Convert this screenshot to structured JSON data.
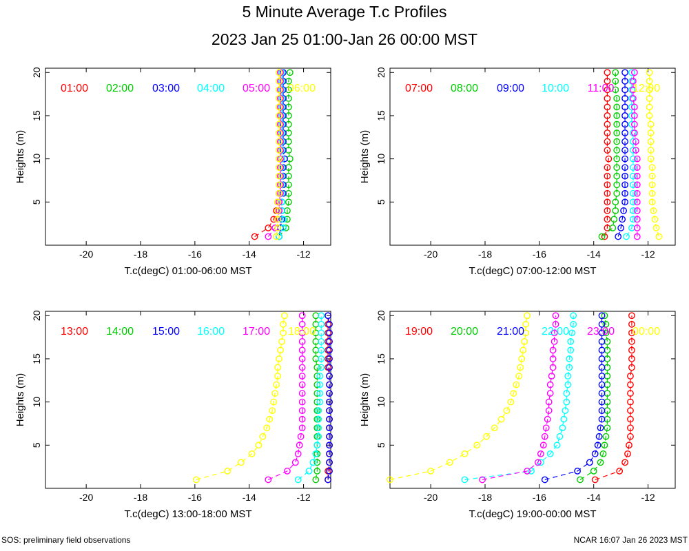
{
  "title": "5 Minute Average T.c Profiles",
  "subtitle": "2023 Jan 25 01:00-Jan 26 00:00 MST",
  "footer_left": "SOS: preliminary field observations",
  "footer_right": "NCAR 16:07 Jan 26 2023 MST",
  "colors": [
    "#ff0000",
    "#00cc00",
    "#0000ff",
    "#00ffff",
    "#ff00ff",
    "#ffff00"
  ],
  "chart_data": [
    {
      "type": "scatter",
      "xlabel": "T.c(degC) 01:00-06:00 MST",
      "ylabel": "Heights (m)",
      "xlim": [
        -21.5,
        -11.0
      ],
      "ylim": [
        0,
        20.5
      ],
      "xticks": [
        -20,
        -18,
        -16,
        -14,
        -12
      ],
      "yticks": [
        5,
        10,
        15,
        20
      ],
      "heights": [
        1,
        2,
        3,
        4,
        5,
        6,
        7,
        8,
        9,
        10,
        11,
        12,
        13,
        14,
        15,
        16,
        17,
        18,
        19,
        20
      ],
      "series": [
        {
          "name": "01:00",
          "values": [
            -13.8,
            -13.3,
            -13.1,
            -13.0,
            -12.95,
            -12.9,
            -12.85,
            -12.85,
            -12.85,
            -12.85,
            -12.85,
            -12.85,
            -12.85,
            -12.85,
            -12.85,
            -12.85,
            -12.85,
            -12.85,
            -12.85,
            -12.85
          ]
        },
        {
          "name": "02:00",
          "values": [
            -12.9,
            -12.65,
            -12.6,
            -12.6,
            -12.55,
            -12.55,
            -12.55,
            -12.55,
            -12.55,
            -12.5,
            -12.55,
            -12.55,
            -12.55,
            -12.55,
            -12.55,
            -12.55,
            -12.55,
            -12.55,
            -12.55,
            -12.5
          ]
        },
        {
          "name": "03:00",
          "values": [
            -12.9,
            -12.85,
            -12.8,
            -12.8,
            -12.8,
            -12.75,
            -12.75,
            -12.75,
            -12.75,
            -12.7,
            -12.75,
            -12.75,
            -12.75,
            -12.75,
            -12.75,
            -12.75,
            -12.75,
            -12.75,
            -12.75,
            -12.75
          ]
        },
        {
          "name": "04:00",
          "values": [
            -12.9,
            -12.75,
            -12.75,
            -12.8,
            -12.8,
            -12.8,
            -12.8,
            -12.8,
            -12.8,
            -12.8,
            -12.8,
            -12.8,
            -12.8,
            -12.8,
            -12.8,
            -12.8,
            -12.8,
            -12.8,
            -12.8,
            -12.8
          ]
        },
        {
          "name": "05:00",
          "values": [
            -13.3,
            -13.05,
            -12.95,
            -12.9,
            -12.9,
            -12.85,
            -12.85,
            -12.85,
            -12.85,
            -12.85,
            -12.85,
            -12.85,
            -12.85,
            -12.85,
            -12.85,
            -12.85,
            -12.85,
            -12.85,
            -12.85,
            -12.85
          ]
        },
        {
          "name": "06:00",
          "values": [
            -13.0,
            -12.95,
            -12.95,
            -12.95,
            -12.95,
            -12.9,
            -12.9,
            -12.9,
            -12.9,
            -12.9,
            -12.9,
            -12.9,
            -12.9,
            -12.9,
            -12.9,
            -12.9,
            -12.9,
            -12.9,
            -12.9,
            -12.9
          ]
        }
      ]
    },
    {
      "type": "scatter",
      "xlabel": "T.c(degC) 07:00-12:00 MST",
      "ylabel": "Heights (m)",
      "xlim": [
        -21.5,
        -11.0
      ],
      "ylim": [
        0,
        20.5
      ],
      "xticks": [
        -20,
        -18,
        -16,
        -14,
        -12
      ],
      "yticks": [
        5,
        10,
        15,
        20
      ],
      "heights": [
        1,
        2,
        3,
        4,
        5,
        6,
        7,
        8,
        9,
        10,
        11,
        12,
        13,
        14,
        15,
        16,
        17,
        18,
        19,
        20
      ],
      "series": [
        {
          "name": "07:00",
          "values": [
            -13.6,
            -13.5,
            -13.5,
            -13.5,
            -13.5,
            -13.5,
            -13.5,
            -13.5,
            -13.5,
            -13.45,
            -13.5,
            -13.5,
            -13.5,
            -13.5,
            -13.5,
            -13.5,
            -13.5,
            -13.5,
            -13.5,
            -13.5
          ]
        },
        {
          "name": "08:00",
          "values": [
            -13.7,
            -13.3,
            -13.25,
            -13.2,
            -13.2,
            -13.15,
            -13.15,
            -13.15,
            -13.15,
            -13.15,
            -13.15,
            -13.15,
            -13.15,
            -13.15,
            -13.15,
            -13.15,
            -13.15,
            -13.2,
            -13.2,
            -13.2
          ]
        },
        {
          "name": "09:00",
          "values": [
            -13.1,
            -13.0,
            -12.95,
            -12.9,
            -12.85,
            -12.85,
            -12.85,
            -12.85,
            -12.85,
            -12.85,
            -12.85,
            -12.85,
            -12.85,
            -12.85,
            -12.85,
            -12.85,
            -12.85,
            -12.85,
            -12.85,
            -12.85
          ]
        },
        {
          "name": "10:00",
          "values": [
            -12.8,
            -12.6,
            -12.55,
            -12.55,
            -12.55,
            -12.55,
            -12.55,
            -12.55,
            -12.55,
            -12.55,
            -12.55,
            -12.55,
            -12.55,
            -12.6,
            -12.6,
            -12.6,
            -12.6,
            -12.6,
            -12.6,
            -12.6
          ]
        },
        {
          "name": "11:00",
          "values": [
            -12.4,
            -12.4,
            -12.4,
            -12.4,
            -12.4,
            -12.4,
            -12.4,
            -12.4,
            -12.4,
            -12.4,
            -12.45,
            -12.45,
            -12.5,
            -12.5,
            -12.5,
            -12.5,
            -12.55,
            -12.55,
            -12.55,
            -12.5
          ]
        },
        {
          "name": "12:00",
          "values": [
            -11.6,
            -11.7,
            -11.75,
            -11.8,
            -11.85,
            -11.85,
            -11.85,
            -11.85,
            -11.85,
            -11.9,
            -11.9,
            -11.9,
            -11.9,
            -11.9,
            -11.95,
            -11.95,
            -11.95,
            -11.95,
            -11.95,
            -11.95
          ]
        }
      ]
    },
    {
      "type": "scatter",
      "xlabel": "T.c(degC) 13:00-18:00 MST",
      "ylabel": "Heights (m)",
      "xlim": [
        -21.5,
        -11.0
      ],
      "ylim": [
        0,
        20.5
      ],
      "xticks": [
        -20,
        -18,
        -16,
        -14,
        -12
      ],
      "yticks": [
        5,
        10,
        15,
        20
      ],
      "heights": [
        1,
        2,
        3,
        4,
        5,
        6,
        7,
        8,
        9,
        10,
        11,
        12,
        13,
        14,
        15,
        16,
        17,
        18,
        19,
        20
      ],
      "series": [
        {
          "name": "13:00",
          "values": [
            -11.1,
            -11.1,
            -11.05,
            -11.05,
            -11.05,
            -11.05,
            -11.05,
            -11.05,
            -11.05,
            -11.05,
            -11.05,
            -11.05,
            -11.05,
            -11.1,
            -11.1,
            -11.1,
            -11.1,
            -11.1,
            -11.1,
            -11.1
          ]
        },
        {
          "name": "14:00",
          "values": [
            -11.55,
            -11.5,
            -11.5,
            -11.5,
            -11.5,
            -11.5,
            -11.5,
            -11.5,
            -11.5,
            -11.5,
            -11.5,
            -11.5,
            -11.5,
            -11.5,
            -11.55,
            -11.55,
            -11.55,
            -11.55,
            -11.55,
            -11.55
          ]
        },
        {
          "name": "15:00",
          "values": [
            -11.1,
            -11.05,
            -11.05,
            -11.05,
            -11.05,
            -11.05,
            -11.05,
            -11.05,
            -11.05,
            -11.05,
            -11.05,
            -11.05,
            -11.05,
            -11.05,
            -11.05,
            -11.05,
            -11.05,
            -11.05,
            -11.05,
            -11.1
          ]
        },
        {
          "name": "16:00",
          "values": [
            -12.2,
            -11.8,
            -11.65,
            -11.55,
            -11.5,
            -11.45,
            -11.45,
            -11.45,
            -11.45,
            -11.4,
            -11.4,
            -11.4,
            -11.4,
            -11.35,
            -11.35,
            -11.35,
            -11.35,
            -11.35,
            -11.35,
            -11.35
          ]
        },
        {
          "name": "17:00",
          "values": [
            -13.3,
            -12.6,
            -12.3,
            -12.2,
            -12.15,
            -12.1,
            -12.05,
            -12.05,
            -12.05,
            -12.05,
            -12.05,
            -12.05,
            -12.05,
            -12.05,
            -12.05,
            -12.05,
            -12.05,
            -12.05,
            -12.05,
            -12.05
          ]
        },
        {
          "name": "18:00",
          "values": [
            -15.95,
            -14.8,
            -14.3,
            -13.9,
            -13.65,
            -13.5,
            -13.35,
            -13.25,
            -13.15,
            -13.1,
            -13.05,
            -13.0,
            -12.95,
            -12.95,
            -12.9,
            -12.85,
            -12.8,
            -12.75,
            -12.75,
            -12.7
          ]
        }
      ]
    },
    {
      "type": "scatter",
      "xlabel": "T.c(degC) 19:00-00:00 MST",
      "ylabel": "Heights (m)",
      "xlim": [
        -21.5,
        -11.0
      ],
      "ylim": [
        0,
        20.5
      ],
      "xticks": [
        -20,
        -18,
        -16,
        -14,
        -12
      ],
      "yticks": [
        5,
        10,
        15,
        20
      ],
      "heights": [
        1,
        2,
        3,
        4,
        5,
        6,
        7,
        8,
        9,
        10,
        11,
        12,
        13,
        14,
        15,
        16,
        17,
        18,
        19,
        20
      ],
      "series": [
        {
          "name": "19:00",
          "values": [
            -13.95,
            -13.05,
            -12.85,
            -12.75,
            -12.7,
            -12.65,
            -12.65,
            -12.65,
            -12.65,
            -12.65,
            -12.65,
            -12.65,
            -12.65,
            -12.6,
            -12.6,
            -12.6,
            -12.6,
            -12.6,
            -12.6,
            -12.6
          ]
        },
        {
          "name": "20:00",
          "values": [
            -14.5,
            -14.0,
            -13.75,
            -13.65,
            -13.6,
            -13.55,
            -13.5,
            -13.5,
            -13.5,
            -13.5,
            -13.5,
            -13.5,
            -13.5,
            -13.5,
            -13.5,
            -13.5,
            -13.5,
            -13.55,
            -13.55,
            -13.6
          ]
        },
        {
          "name": "21:00",
          "values": [
            -15.8,
            -14.6,
            -14.15,
            -13.95,
            -13.85,
            -13.8,
            -13.75,
            -13.7,
            -13.7,
            -13.7,
            -13.7,
            -13.7,
            -13.7,
            -13.7,
            -13.7,
            -13.7,
            -13.7,
            -13.7,
            -13.7,
            -13.7
          ]
        },
        {
          "name": "22:00",
          "values": [
            -18.75,
            -16.3,
            -15.95,
            -15.6,
            -15.35,
            -15.25,
            -15.15,
            -15.1,
            -15.05,
            -15.0,
            -15.0,
            -14.95,
            -14.95,
            -14.9,
            -14.9,
            -14.85,
            -14.85,
            -14.8,
            -14.75,
            -14.75
          ]
        },
        {
          "name": "23:00",
          "values": [
            -18.1,
            -16.45,
            -16.05,
            -15.95,
            -15.85,
            -15.8,
            -15.75,
            -15.7,
            -15.65,
            -15.65,
            -15.6,
            -15.6,
            -15.55,
            -15.5,
            -15.5,
            -15.5,
            -15.45,
            -15.45,
            -15.4,
            -15.4
          ]
        },
        {
          "name": "00:00",
          "values": [
            -21.5,
            -20.0,
            -19.3,
            -18.75,
            -18.3,
            -17.95,
            -17.65,
            -17.4,
            -17.2,
            -17.05,
            -16.95,
            -16.85,
            -16.75,
            -16.7,
            -16.65,
            -16.6,
            -16.55,
            -16.5,
            -16.5,
            -16.45
          ]
        }
      ]
    }
  ]
}
